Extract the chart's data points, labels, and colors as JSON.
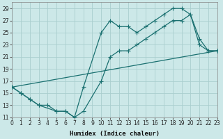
{
  "xlabel": "Humidex (Indice chaleur)",
  "xlim": [
    0,
    23
  ],
  "ylim": [
    11,
    30
  ],
  "xticks": [
    0,
    1,
    2,
    3,
    4,
    5,
    6,
    7,
    8,
    9,
    10,
    11,
    12,
    13,
    14,
    15,
    16,
    17,
    18,
    19,
    20,
    21,
    22,
    23
  ],
  "yticks": [
    11,
    13,
    15,
    17,
    19,
    21,
    23,
    25,
    27,
    29
  ],
  "bg_color": "#cce8e8",
  "grid_color": "#b0d4d4",
  "line_color": "#1a7070",
  "curve1_x": [
    0,
    1,
    2,
    3,
    4,
    5,
    6,
    7,
    8,
    10,
    11,
    12,
    13,
    14,
    15,
    16,
    17,
    18,
    19,
    20,
    21,
    22,
    23
  ],
  "curve1_y": [
    16,
    15,
    14,
    13,
    13,
    12,
    12,
    11,
    16,
    25,
    27,
    26,
    26,
    25,
    26,
    27,
    28,
    29,
    29,
    28,
    23,
    22,
    22
  ],
  "curve2_x": [
    0,
    1,
    2,
    3,
    5,
    6,
    7,
    8,
    10,
    11,
    12,
    13,
    14,
    15,
    16,
    17,
    18,
    19,
    20,
    21,
    22,
    23
  ],
  "curve2_y": [
    16,
    15,
    14,
    13,
    12,
    12,
    11,
    12,
    17,
    21,
    22,
    22,
    23,
    24,
    25,
    26,
    27,
    27,
    28,
    24,
    22,
    22
  ],
  "curve3_x": [
    0,
    23
  ],
  "curve3_y": [
    16,
    22
  ]
}
